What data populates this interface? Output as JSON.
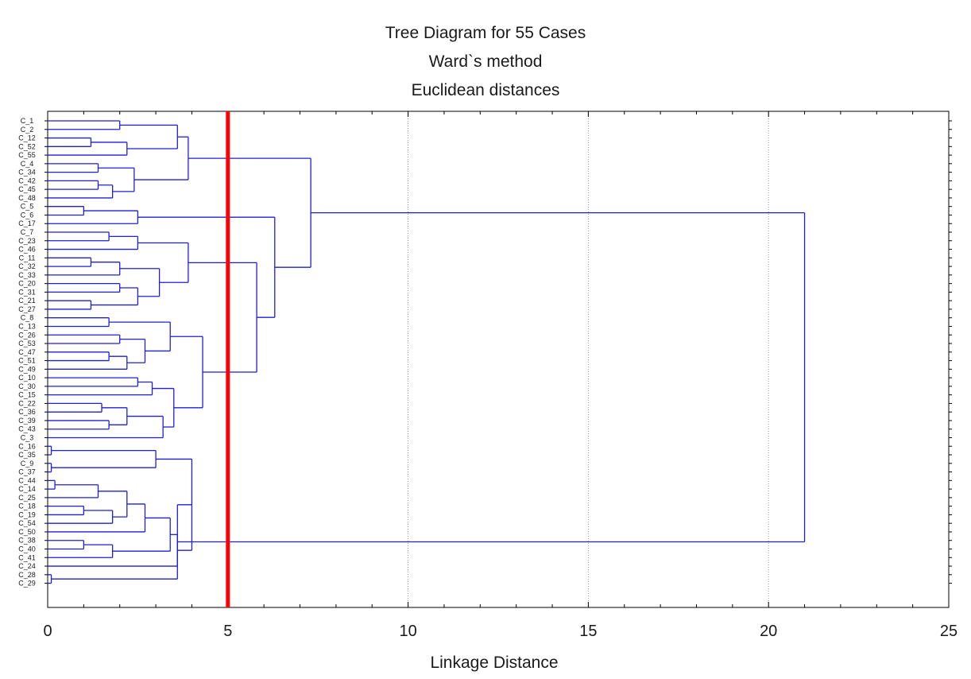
{
  "chart_data": {
    "type": "dendrogram",
    "title": "Tree Diagram for 55 Cases",
    "subtitle_lines": [
      "Ward`s method",
      "Euclidean distances"
    ],
    "xlabel": "Linkage Distance",
    "xlim": [
      0,
      25
    ],
    "x_ticks": [
      0,
      5,
      10,
      15,
      20,
      25
    ],
    "x_tick_labels": [
      "0",
      "5",
      "10",
      "15",
      "20",
      "25"
    ],
    "grid": "vertical dotted at major ticks",
    "orientation": "horizontal, leaves on left",
    "line_color": "#1f1fd6",
    "cut_line": {
      "x": 5,
      "color": "#ff0000"
    },
    "leaves": [
      "C_1",
      "C_2",
      "C_12",
      "C_52",
      "C_55",
      "C_4",
      "C_34",
      "C_42",
      "C_45",
      "C_48",
      "C_5",
      "C_6",
      "C_17",
      "C_7",
      "C_23",
      "C_46",
      "C_11",
      "C_32",
      "C_33",
      "C_20",
      "C_31",
      "C_21",
      "C_27",
      "C_8",
      "C_13",
      "C_26",
      "C_53",
      "C_47",
      "C_51",
      "C_49",
      "C_10",
      "C_30",
      "C_15",
      "C_22",
      "C_36",
      "C_39",
      "C_43",
      "C_3",
      "C_16",
      "C_35",
      "C_9",
      "C_37",
      "C_44",
      "C_14",
      "C_25",
      "C_18",
      "C_19",
      "C_54",
      "C_50",
      "C_38",
      "C_40",
      "C_41",
      "C_24",
      "C_28",
      "C_29"
    ],
    "merges": [
      {
        "a": 0,
        "b": 1,
        "h": 2.0
      },
      {
        "a": 2,
        "b": 3,
        "h": 1.2
      },
      {
        "a": "m1",
        "b": 4,
        "h": 2.2
      },
      {
        "a": "m0",
        "b": "m2",
        "h": 3.6
      },
      {
        "a": 5,
        "b": 6,
        "h": 1.4
      },
      {
        "a": 7,
        "b": 8,
        "h": 1.4
      },
      {
        "a": "m5",
        "b": 9,
        "h": 1.8
      },
      {
        "a": "m4",
        "b": "m6",
        "h": 2.4
      },
      {
        "a": "m3",
        "b": "m7",
        "h": 3.9
      },
      {
        "a": 10,
        "b": 11,
        "h": 1.0
      },
      {
        "a": "m9",
        "b": 12,
        "h": 2.5
      },
      {
        "a": 13,
        "b": 14,
        "h": 1.7
      },
      {
        "a": "m11",
        "b": 15,
        "h": 2.5
      },
      {
        "a": 16,
        "b": 17,
        "h": 1.2
      },
      {
        "a": "m13",
        "b": 18,
        "h": 2.0
      },
      {
        "a": 19,
        "b": 20,
        "h": 2.0
      },
      {
        "a": 21,
        "b": 22,
        "h": 1.2
      },
      {
        "a": "m15",
        "b": "m16",
        "h": 2.5
      },
      {
        "a": "m14",
        "b": "m17",
        "h": 3.1
      },
      {
        "a": "m12",
        "b": "m18",
        "h": 3.9
      },
      {
        "a": 23,
        "b": 24,
        "h": 1.7
      },
      {
        "a": 25,
        "b": 26,
        "h": 2.0
      },
      {
        "a": 27,
        "b": 28,
        "h": 1.7
      },
      {
        "a": "m22",
        "b": 29,
        "h": 2.2
      },
      {
        "a": "m21",
        "b": "m23",
        "h": 2.7
      },
      {
        "a": "m20",
        "b": "m24",
        "h": 3.4
      },
      {
        "a": 30,
        "b": 31,
        "h": 2.5
      },
      {
        "a": "m26",
        "b": 32,
        "h": 2.9
      },
      {
        "a": 33,
        "b": 34,
        "h": 1.5
      },
      {
        "a": 35,
        "b": 36,
        "h": 1.7
      },
      {
        "a": "m28",
        "b": "m29",
        "h": 2.2
      },
      {
        "a": "m30",
        "b": 37,
        "h": 3.2
      },
      {
        "a": "m27",
        "b": "m31",
        "h": 3.5
      },
      {
        "a": "m25",
        "b": "m32",
        "h": 4.3
      },
      {
        "a": "m19",
        "b": "m33",
        "h": 5.8
      },
      {
        "a": "m10",
        "b": "m34",
        "h": 6.3
      },
      {
        "a": "m8",
        "b": "m35",
        "h": 7.3
      },
      {
        "a": 38,
        "b": 39,
        "h": 0.1
      },
      {
        "a": 40,
        "b": 41,
        "h": 0.1
      },
      {
        "a": "m37",
        "b": "m38",
        "h": 3.0
      },
      {
        "a": 42,
        "b": 43,
        "h": 0.2
      },
      {
        "a": "m40",
        "b": 44,
        "h": 1.4
      },
      {
        "a": 45,
        "b": 46,
        "h": 1.0
      },
      {
        "a": "m42",
        "b": 47,
        "h": 1.8
      },
      {
        "a": "m41",
        "b": "m43",
        "h": 2.2
      },
      {
        "a": "m44",
        "b": 48,
        "h": 2.7
      },
      {
        "a": 49,
        "b": 50,
        "h": 1.0
      },
      {
        "a": "m46",
        "b": 51,
        "h": 1.8
      },
      {
        "a": "m45",
        "b": "m47",
        "h": 3.4
      },
      {
        "a": "m48",
        "b": 52,
        "h": 3.6
      },
      {
        "a": "m39",
        "b": "m49",
        "h": 4.0
      },
      {
        "a": 53,
        "b": 54,
        "h": 0.1
      },
      {
        "a": "m50",
        "b": "m51",
        "h": 3.6
      },
      {
        "a": "m36",
        "b": "m52",
        "h": 21.0
      }
    ]
  }
}
